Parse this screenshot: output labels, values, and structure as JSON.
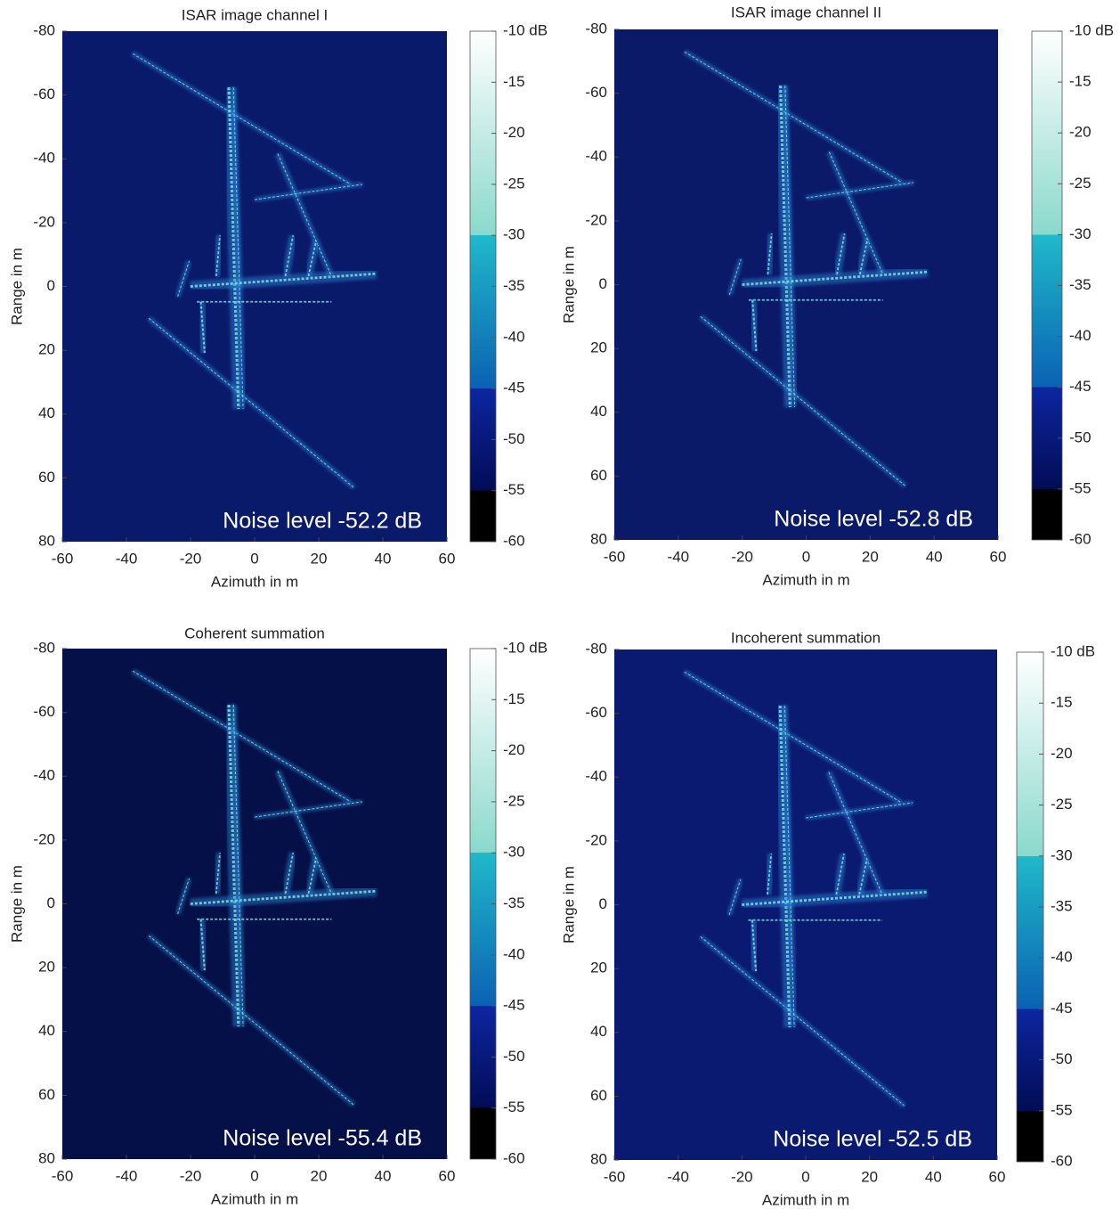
{
  "chart_data": [
    {
      "type": "heatmap",
      "title": "ISAR image channel I",
      "x_label": "Azimuth in m",
      "y_label": "Range in m",
      "xlim": [
        -60,
        60
      ],
      "xticks": [
        -60,
        -40,
        -20,
        0,
        20,
        40,
        60
      ],
      "ylim": [
        -80,
        80
      ],
      "yticks": [
        -80,
        -60,
        -40,
        -20,
        0,
        20,
        40,
        60,
        80
      ],
      "y_reversed": true,
      "background": "#0a1a6a",
      "annotation": "Noise level -52.2 dB",
      "colorbar": {
        "clim": [
          -60,
          -10
        ],
        "ticks": [
          {
            "value": -10,
            "label": "-10 dB"
          },
          -15,
          -20,
          -25,
          -30,
          -35,
          -40,
          -45,
          -50,
          -55,
          -60
        ],
        "colormap": [
          "#ffffff",
          "#8ad9cc",
          "#20b9ca",
          "#0a62b2",
          "#0c26a0",
          "#020c55",
          "#000000",
          "#000000"
        ]
      }
    },
    {
      "type": "heatmap",
      "title": "ISAR image channel II",
      "x_label": "Azimuth in m",
      "y_label": "Range in m",
      "xlim": [
        -60,
        60
      ],
      "xticks": [
        -60,
        -40,
        -20,
        0,
        20,
        40,
        60
      ],
      "ylim": [
        -80,
        80
      ],
      "yticks": [
        -80,
        -60,
        -40,
        -20,
        0,
        20,
        40,
        60,
        80
      ],
      "y_reversed": true,
      "background": "#0a1a68",
      "annotation": "Noise level -52.8 dB",
      "colorbar": {
        "clim": [
          -60,
          -10
        ],
        "ticks": [
          {
            "value": -10,
            "label": "-10 dB"
          },
          -15,
          -20,
          -25,
          -30,
          -35,
          -40,
          -45,
          -50,
          -55,
          -60
        ],
        "colormap": [
          "#ffffff",
          "#8ad9cc",
          "#20b9ca",
          "#0a62b2",
          "#0c26a0",
          "#020c55",
          "#000000",
          "#000000"
        ]
      }
    },
    {
      "type": "heatmap",
      "title": "Coherent summation",
      "x_label": "Azimuth in m",
      "y_label": "Range in m",
      "xlim": [
        -60,
        60
      ],
      "xticks": [
        -60,
        -40,
        -20,
        0,
        20,
        40,
        60
      ],
      "ylim": [
        -80,
        80
      ],
      "yticks": [
        -80,
        -60,
        -40,
        -20,
        0,
        20,
        40,
        60,
        80
      ],
      "y_reversed": true,
      "background": "#061048",
      "annotation": "Noise level -55.4 dB",
      "colorbar": {
        "clim": [
          -60,
          -10
        ],
        "ticks": [
          {
            "value": -10,
            "label": "-10 dB"
          },
          -15,
          -20,
          -25,
          -30,
          -35,
          -40,
          -45,
          -50,
          -55,
          -60
        ],
        "colormap": [
          "#ffffff",
          "#8ad9cc",
          "#20b9ca",
          "#0a62b2",
          "#0c26a0",
          "#020c55",
          "#000000",
          "#000000"
        ]
      }
    },
    {
      "type": "heatmap",
      "title": "Incoherent summation",
      "x_label": "Azimuth in m",
      "y_label": "Range in m",
      "xlim": [
        -60,
        60
      ],
      "xticks": [
        -60,
        -40,
        -20,
        0,
        20,
        40,
        60
      ],
      "ylim": [
        -80,
        80
      ],
      "yticks": [
        -80,
        -60,
        -40,
        -20,
        0,
        20,
        40,
        60,
        80
      ],
      "y_reversed": true,
      "background": "#0a1a70",
      "annotation": "Noise level -52.5 dB",
      "colorbar": {
        "clim": [
          -60,
          -10
        ],
        "ticks": [
          {
            "value": -10,
            "label": "-10 dB"
          },
          -15,
          -20,
          -25,
          -30,
          -35,
          -40,
          -45,
          -50,
          -55,
          -60
        ],
        "colormap": [
          "#ffffff",
          "#8ad9cc",
          "#20b9ca",
          "#0a62b2",
          "#0c26a0",
          "#020c55",
          "#000000",
          "#000000"
        ]
      }
    }
  ]
}
